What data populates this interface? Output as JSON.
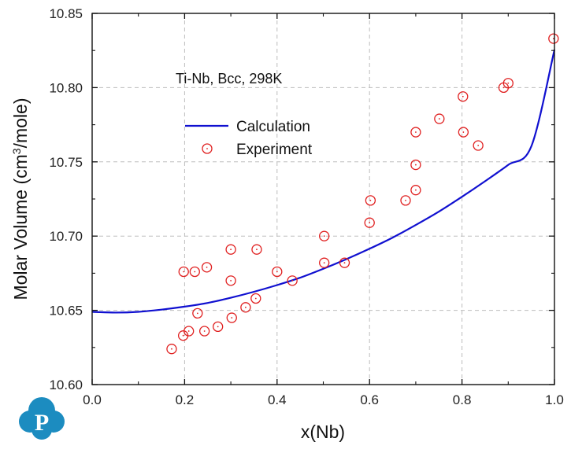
{
  "chart_data": {
    "type": "scatter",
    "annotation": "Ti-Nb, Bcc, 298K",
    "xlabel": "x(Nb)",
    "ylabel_main": "Molar Volume (cm",
    "ylabel_sup": "3",
    "ylabel_end": "/mole)",
    "xlim": [
      0.0,
      1.0
    ],
    "ylim": [
      10.6,
      10.85
    ],
    "xticks": [
      "0.0",
      "0.2",
      "0.4",
      "0.6",
      "0.8",
      "1.0"
    ],
    "yticks": [
      "10.60",
      "10.65",
      "10.70",
      "10.75",
      "10.80",
      "10.85"
    ],
    "grid": true,
    "legend_position": "upper-left",
    "series": [
      {
        "name": "Calculation",
        "kind": "line",
        "color": "#1010d0",
        "x": [
          0.0,
          0.05,
          0.1,
          0.15,
          0.2,
          0.25,
          0.3,
          0.35,
          0.4,
          0.45,
          0.5,
          0.55,
          0.6,
          0.65,
          0.7,
          0.75,
          0.8,
          0.85,
          0.9,
          0.95,
          1.0
        ],
        "y": [
          10.649,
          10.6485,
          10.649,
          10.6505,
          10.6525,
          10.655,
          10.6585,
          10.6625,
          10.667,
          10.672,
          10.678,
          10.6845,
          10.6915,
          10.699,
          10.7075,
          10.7165,
          10.7265,
          10.737,
          10.748,
          10.7605,
          10.8255
        ]
      },
      {
        "name": "Experiment",
        "kind": "scatter",
        "color": "#e02020",
        "x": [
          0.172,
          0.197,
          0.198,
          0.209,
          0.222,
          0.228,
          0.243,
          0.248,
          0.272,
          0.3,
          0.3,
          0.302,
          0.332,
          0.354,
          0.356,
          0.4,
          0.433,
          0.502,
          0.502,
          0.546,
          0.6,
          0.602,
          0.678,
          0.7,
          0.7,
          0.7,
          0.751,
          0.802,
          0.803,
          0.835,
          0.89,
          0.9,
          0.998
        ],
        "y": [
          10.624,
          10.633,
          10.676,
          10.636,
          10.676,
          10.648,
          10.636,
          10.679,
          10.639,
          10.691,
          10.67,
          10.645,
          10.652,
          10.658,
          10.691,
          10.676,
          10.67,
          10.7,
          10.682,
          10.682,
          10.709,
          10.724,
          10.724,
          10.77,
          10.748,
          10.731,
          10.779,
          10.794,
          10.77,
          10.761,
          10.8,
          10.803,
          10.833
        ]
      }
    ]
  },
  "logo": {
    "name": "company-logo",
    "letter": "P",
    "color": "#1c8cc0"
  }
}
